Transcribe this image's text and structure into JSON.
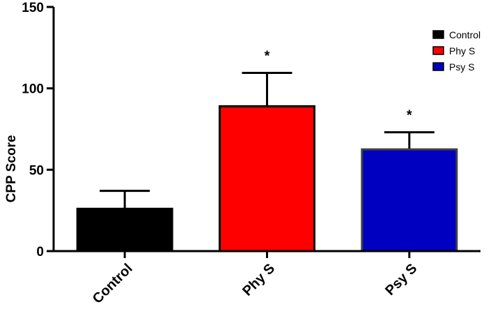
{
  "chart_data": {
    "type": "bar",
    "title": "",
    "xlabel": "",
    "ylabel": "CPP Score",
    "ylim": [
      0,
      150
    ],
    "yticks": [
      "0",
      "50",
      "100",
      "150"
    ],
    "ytick_values": [
      0,
      50,
      100,
      150
    ],
    "categories": [
      "Control",
      "Phy S",
      "Psy S"
    ],
    "values": [
      26,
      89,
      62.5
    ],
    "errors": [
      11,
      20.5,
      10.5
    ],
    "colors": [
      "#000000",
      "#ff0000",
      "#0000c0"
    ],
    "edge_colors": [
      "#000000",
      "#000000",
      "#404040"
    ],
    "significance": [
      "",
      "*",
      "*"
    ],
    "legend": {
      "position": "top-right",
      "entries": [
        "Control",
        "Phy S",
        "Psy S"
      ]
    },
    "grid": false
  }
}
